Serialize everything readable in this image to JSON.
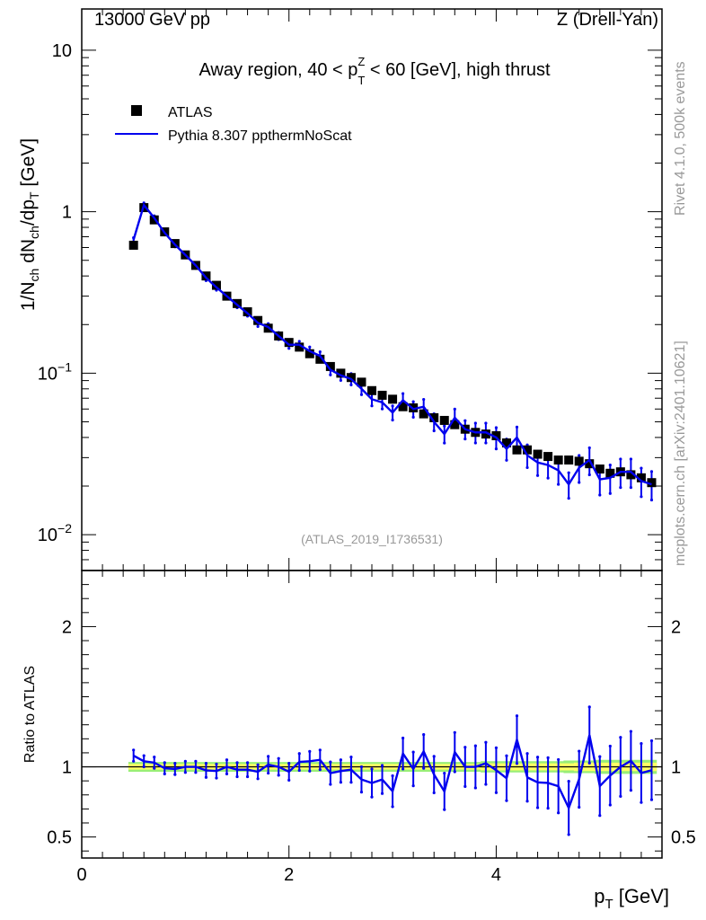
{
  "header": {
    "left": "13000 GeV pp",
    "right": "Z (Drell-Yan)"
  },
  "side_labels": {
    "rivet": "Rivet 4.1.0,  500k events",
    "mcplots": "mcplots.cern.ch [arXiv:2401.10621]"
  },
  "colors": {
    "mc": "#0000ee",
    "data": "#000000",
    "band_inner": "#ffff66",
    "band_outer": "#99ee77"
  },
  "chart_data": [
    {
      "type": "scatter",
      "title_parts": {
        "pre": "Away region, 40 < p",
        "sup": "Z",
        "sub": "T",
        "post": " < 60 [GeV], high thrust"
      },
      "ylabel": "1/N_ch dN_ch/dp_T [GeV]",
      "yscale": "log",
      "ylim": [
        0.006,
        18
      ],
      "yticks": [
        {
          "v": 0.01,
          "base": "10",
          "exp": "−2"
        },
        {
          "v": 0.1,
          "base": "10",
          "exp": "−1"
        },
        {
          "v": 1,
          "base": "1",
          "exp": ""
        },
        {
          "v": 10,
          "base": "10",
          "exp": ""
        }
      ],
      "watermark": "(ATLAS_2019_I1736531)",
      "legend": [
        "ATLAS",
        "Pythia 8.307 ppthermNoScat"
      ],
      "x": [
        0.5,
        0.6,
        0.7,
        0.8,
        0.9,
        1.0,
        1.1,
        1.2,
        1.3,
        1.4,
        1.5,
        1.6,
        1.7,
        1.8,
        1.9,
        2.0,
        2.1,
        2.2,
        2.3,
        2.4,
        2.5,
        2.6,
        2.7,
        2.8,
        2.9,
        3.0,
        3.1,
        3.2,
        3.3,
        3.4,
        3.5,
        3.6,
        3.7,
        3.8,
        3.9,
        4.0,
        4.1,
        4.2,
        4.3,
        4.4,
        4.5,
        4.6,
        4.7,
        4.8,
        4.9,
        5.0,
        5.1,
        5.2,
        5.3,
        5.4,
        5.5
      ],
      "series": [
        {
          "name": "ATLAS",
          "values": [
            0.62,
            1.06,
            0.89,
            0.75,
            0.635,
            0.54,
            0.465,
            0.4,
            0.35,
            0.3,
            0.27,
            0.24,
            0.212,
            0.19,
            0.17,
            0.155,
            0.145,
            0.132,
            0.122,
            0.11,
            0.1,
            0.094,
            0.088,
            0.078,
            0.073,
            0.069,
            0.062,
            0.061,
            0.056,
            0.053,
            0.051,
            0.048,
            0.045,
            0.043,
            0.042,
            0.041,
            0.037,
            0.0335,
            0.0335,
            0.0315,
            0.0305,
            0.029,
            0.029,
            0.0285,
            0.0275,
            0.0255,
            0.024,
            0.0245,
            0.0235,
            0.0225,
            0.021
          ]
        },
        {
          "name": "Pythia 8.307 ppthermNoScat",
          "values": [
            0.67,
            1.1,
            0.915,
            0.74,
            0.625,
            0.54,
            0.465,
            0.39,
            0.34,
            0.3,
            0.265,
            0.235,
            0.205,
            0.193,
            0.17,
            0.15,
            0.15,
            0.137,
            0.128,
            0.105,
            0.097,
            0.092,
            0.08,
            0.069,
            0.066,
            0.057,
            0.068,
            0.06,
            0.062,
            0.05,
            0.042,
            0.053,
            0.045,
            0.043,
            0.043,
            0.04,
            0.034,
            0.04,
            0.031,
            0.028,
            0.027,
            0.025,
            0.0205,
            0.026,
            0.029,
            0.022,
            0.0225,
            0.0245,
            0.0245,
            0.0215,
            0.0205
          ],
          "err_frac": [
            0.03,
            0.03,
            0.03,
            0.03,
            0.03,
            0.03,
            0.04,
            0.04,
            0.04,
            0.04,
            0.04,
            0.04,
            0.05,
            0.05,
            0.05,
            0.05,
            0.05,
            0.06,
            0.06,
            0.07,
            0.07,
            0.08,
            0.08,
            0.09,
            0.09,
            0.1,
            0.1,
            0.11,
            0.11,
            0.12,
            0.12,
            0.13,
            0.13,
            0.14,
            0.14,
            0.15,
            0.15,
            0.16,
            0.16,
            0.17,
            0.17,
            0.18,
            0.18,
            0.19,
            0.19,
            0.2,
            0.2,
            0.2,
            0.2,
            0.2,
            0.2
          ]
        }
      ]
    },
    {
      "type": "line",
      "ylabel": "Ratio to ATLAS",
      "xlabel_base": "p",
      "xlabel_sub": "T",
      "xlabel_unit": " [GeV]",
      "xlim": [
        0,
        5.6
      ],
      "ylim": [
        0.35,
        2.4
      ],
      "xticks": [
        "0",
        "2",
        "4"
      ],
      "yticks": [
        "0.5",
        "1",
        "2"
      ],
      "x": [
        0.5,
        0.6,
        0.7,
        0.8,
        0.9,
        1.0,
        1.1,
        1.2,
        1.3,
        1.4,
        1.5,
        1.6,
        1.7,
        1.8,
        1.9,
        2.0,
        2.1,
        2.2,
        2.3,
        2.4,
        2.5,
        2.6,
        2.7,
        2.8,
        2.9,
        3.0,
        3.1,
        3.2,
        3.3,
        3.4,
        3.5,
        3.6,
        3.7,
        3.8,
        3.9,
        4.0,
        4.1,
        4.2,
        4.3,
        4.4,
        4.5,
        4.6,
        4.7,
        4.8,
        4.9,
        5.0,
        5.1,
        5.2,
        5.3,
        5.4,
        5.5
      ],
      "ratio": [
        1.08,
        1.04,
        1.03,
        0.99,
        0.985,
        1.0,
        1.0,
        0.975,
        0.97,
        1.0,
        0.98,
        0.98,
        0.965,
        1.015,
        1.0,
        0.965,
        1.035,
        1.04,
        1.05,
        0.955,
        0.97,
        0.98,
        0.91,
        0.885,
        0.91,
        0.826,
        1.095,
        0.985,
        1.11,
        0.945,
        0.825,
        1.105,
        1.0,
        1.0,
        1.025,
        0.976,
        0.919,
        1.194,
        0.925,
        0.889,
        0.885,
        0.862,
        0.707,
        0.912,
        1.227,
        0.863,
        0.938,
        1.0,
        1.043,
        0.956,
        0.976
      ],
      "ratio_err": [
        0.04,
        0.04,
        0.04,
        0.04,
        0.04,
        0.04,
        0.04,
        0.05,
        0.05,
        0.05,
        0.05,
        0.05,
        0.05,
        0.06,
        0.06,
        0.06,
        0.06,
        0.07,
        0.07,
        0.08,
        0.08,
        0.09,
        0.09,
        0.1,
        0.1,
        0.11,
        0.11,
        0.12,
        0.12,
        0.13,
        0.13,
        0.14,
        0.14,
        0.15,
        0.15,
        0.16,
        0.16,
        0.17,
        0.17,
        0.18,
        0.18,
        0.19,
        0.19,
        0.2,
        0.2,
        0.21,
        0.21,
        0.21,
        0.21,
        0.21,
        0.21
      ],
      "band_inner_frac": [
        0.02,
        0.02,
        0.02,
        0.02,
        0.02,
        0.02,
        0.02,
        0.02,
        0.02,
        0.02,
        0.02,
        0.02,
        0.02,
        0.02,
        0.02,
        0.02,
        0.02,
        0.02,
        0.02,
        0.02,
        0.02,
        0.02,
        0.02,
        0.02,
        0.02,
        0.02,
        0.02,
        0.02,
        0.02,
        0.02,
        0.02,
        0.02,
        0.02,
        0.02,
        0.025,
        0.025,
        0.025,
        0.025,
        0.025,
        0.025,
        0.025,
        0.025,
        0.025,
        0.03,
        0.03,
        0.03,
        0.03,
        0.03,
        0.03,
        0.03,
        0.03
      ],
      "band_outer_frac": [
        0.035,
        0.035,
        0.035,
        0.035,
        0.035,
        0.035,
        0.035,
        0.035,
        0.035,
        0.035,
        0.035,
        0.035,
        0.035,
        0.035,
        0.035,
        0.035,
        0.035,
        0.035,
        0.035,
        0.035,
        0.035,
        0.035,
        0.035,
        0.035,
        0.035,
        0.035,
        0.035,
        0.035,
        0.035,
        0.035,
        0.035,
        0.035,
        0.035,
        0.035,
        0.04,
        0.04,
        0.04,
        0.04,
        0.04,
        0.04,
        0.04,
        0.04,
        0.045,
        0.045,
        0.045,
        0.05,
        0.05,
        0.05,
        0.05,
        0.05,
        0.05
      ]
    }
  ]
}
